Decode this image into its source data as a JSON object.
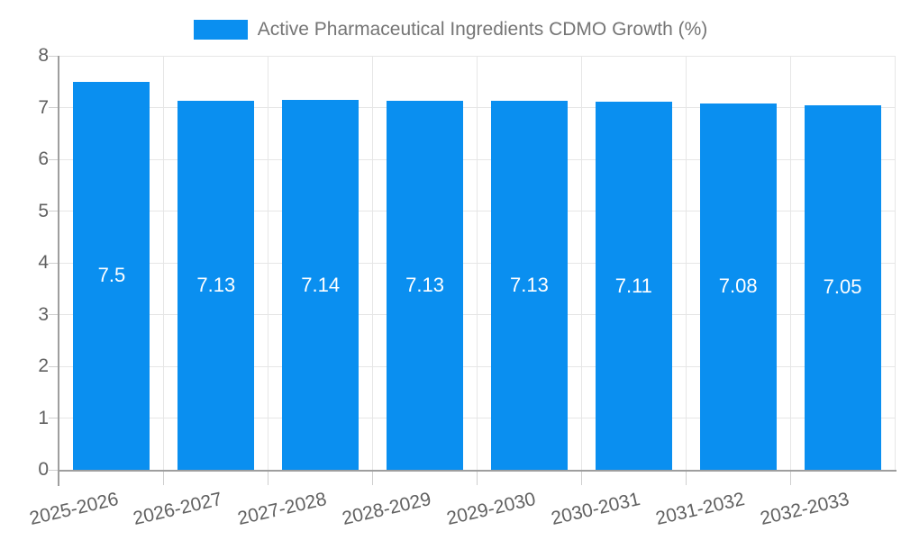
{
  "legend": {
    "label": "Active Pharmaceutical Ingredients CDMO Growth (%)"
  },
  "chart_data": {
    "type": "bar",
    "title": "Active Pharmaceutical Ingredients CDMO Growth (%)",
    "categories": [
      "2025-2026",
      "2026-2027",
      "2027-2028",
      "2028-2029",
      "2029-2030",
      "2030-2031",
      "2031-2032",
      "2032-2033"
    ],
    "values": [
      7.5,
      7.13,
      7.14,
      7.13,
      7.13,
      7.11,
      7.08,
      7.05
    ],
    "bar_labels": [
      "7.5",
      "7.13",
      "7.14",
      "7.13",
      "7.13",
      "7.11",
      "7.08",
      "7.05"
    ],
    "xlabel": "",
    "ylabel": "",
    "ylim": [
      0,
      8
    ],
    "yticks": [
      0,
      1,
      2,
      3,
      4,
      5,
      6,
      7,
      8
    ],
    "grid": true,
    "legend_position": "top",
    "colors": {
      "bar": "#0a8ff0",
      "grid": "#e6e6e6",
      "axis": "#9e9e9e",
      "tick": "#cfcfcf",
      "bar_label_text": "#ffffff",
      "axis_label_text": "#616161",
      "legend_text": "#757575",
      "background": "#ffffff"
    }
  }
}
